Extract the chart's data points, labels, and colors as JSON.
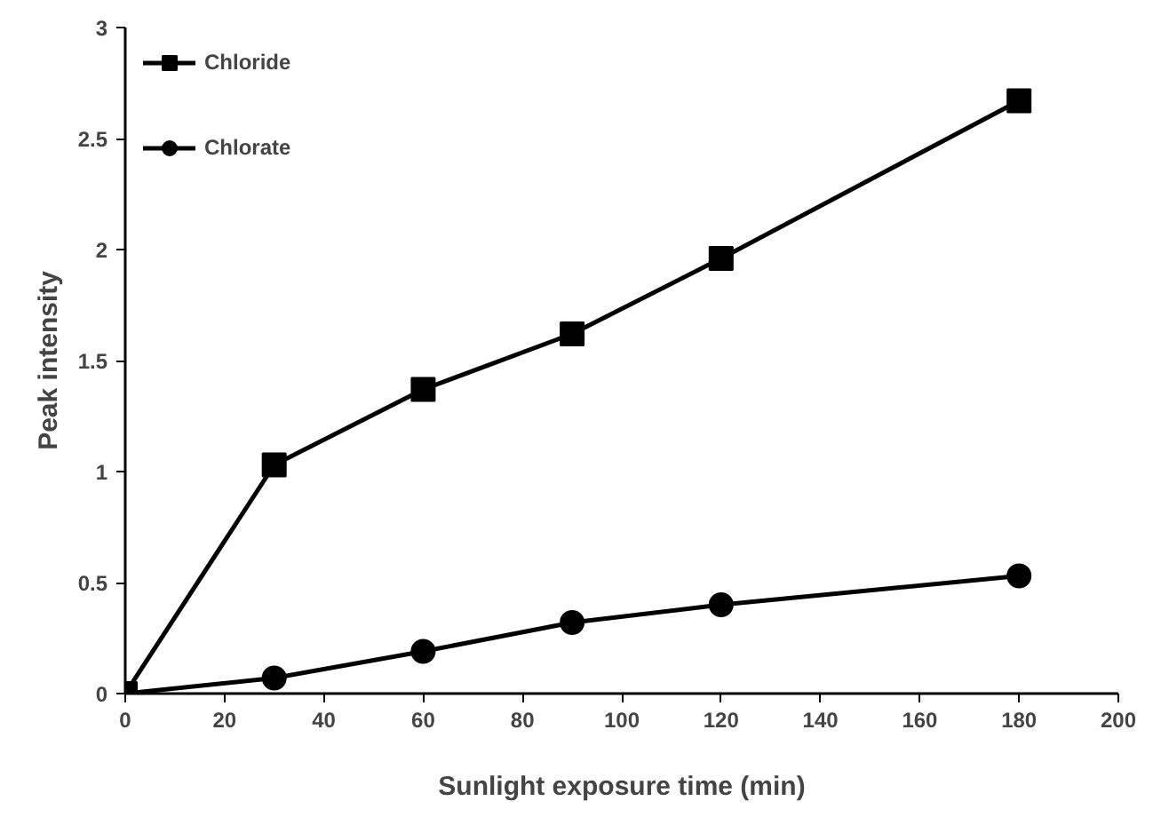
{
  "chart_data": {
    "type": "line",
    "xlabel": "Sunlight exposure time (min)",
    "ylabel": "Peak intensity",
    "x": [
      0,
      30,
      60,
      90,
      120,
      180
    ],
    "series": [
      {
        "name": "Chloride",
        "color": "#000000",
        "marker": "square",
        "values": [
          0,
          1.03,
          1.37,
          1.62,
          1.96,
          2.67
        ]
      },
      {
        "name": "Chlorate",
        "color": "#000000",
        "marker": "circle",
        "values": [
          0,
          0.07,
          0.19,
          0.32,
          0.4,
          0.53
        ]
      }
    ],
    "xlim": [
      0,
      200
    ],
    "xticks": [
      0,
      20,
      40,
      60,
      80,
      100,
      120,
      140,
      160,
      180,
      200
    ],
    "ylim": [
      0,
      3
    ],
    "yticks": [
      0,
      0.5,
      1,
      1.5,
      2,
      2.5,
      3
    ],
    "grid": false,
    "legend": "top left",
    "line_style": "solid"
  }
}
